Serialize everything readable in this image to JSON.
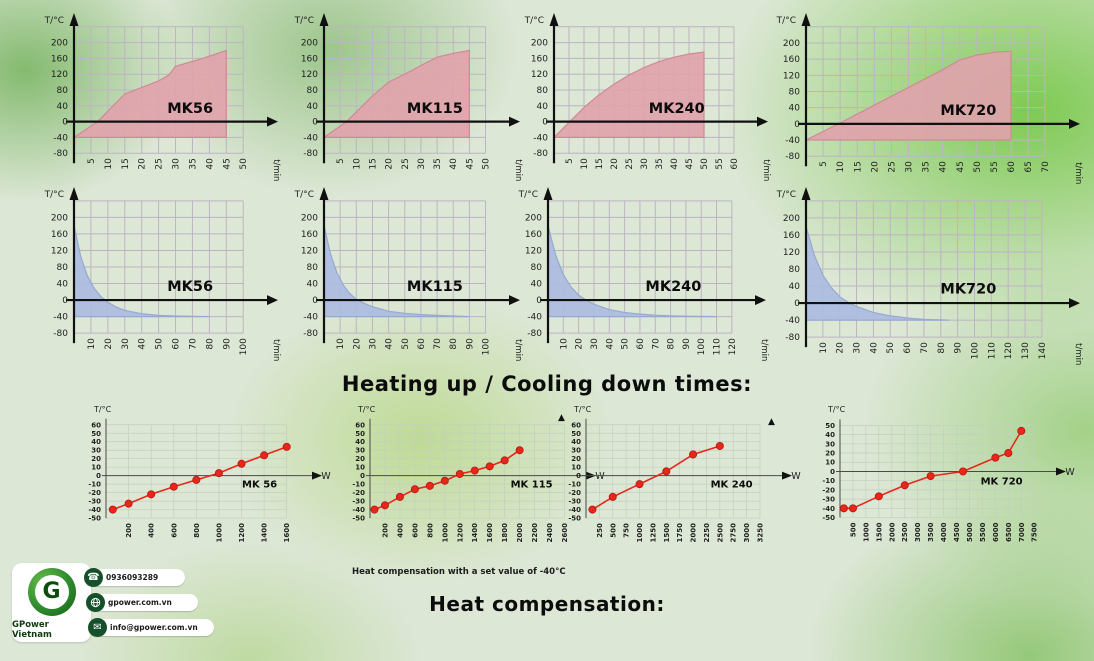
{
  "page": {
    "heading_mid": "Heating up / Cooling down times:",
    "heading_bottom": "Heat compensation:",
    "comp_caption": "Heat compensation with a set value of -40°C",
    "stray_arrow_glyph": "▲"
  },
  "colors": {
    "pink_fill": "#DFA3AB",
    "pink_stroke": "#CE8A95",
    "blue_fill": "#ABBCDF",
    "blue_stroke": "#96A9D3",
    "grid_area": "#BDB4C2",
    "grid_comp": "#C3CFBE",
    "red_line": "#E8271B",
    "red_marker": "#E8271B",
    "red_marker_edge": "#B5160E",
    "axis_bold": "#101010",
    "axis_thin": "#4a4a4a",
    "tick_text": "#222222"
  },
  "contact": {
    "brand": "GPower Vietnam",
    "logo_letter": "G",
    "items": [
      {
        "icon": "phone-icon",
        "label": "0936093289"
      },
      {
        "icon": "globe-icon",
        "label": "gpower.com.vn"
      },
      {
        "icon": "email-icon",
        "label": "info@gpower.com.vn"
      }
    ]
  },
  "chart_data": [
    {
      "id": "heat-mk56",
      "type": "area",
      "variant": "heating",
      "label": "MK56",
      "ylabel": "T/°C",
      "xlabel": "t/min",
      "yticks": [
        200,
        160,
        120,
        80,
        40,
        0,
        -40,
        -80
      ],
      "xticks": [
        5,
        10,
        15,
        20,
        25,
        30,
        35,
        40,
        45,
        50
      ],
      "xmax": 52,
      "baseline": -40,
      "points": [
        [
          0,
          -40
        ],
        [
          7,
          0
        ],
        [
          15,
          70
        ],
        [
          25,
          103
        ],
        [
          28,
          118
        ],
        [
          30,
          140
        ],
        [
          38,
          160
        ],
        [
          45,
          180
        ]
      ]
    },
    {
      "id": "heat-mk115",
      "type": "area",
      "variant": "heating",
      "label": "MK115",
      "ylabel": "T/°C",
      "xlabel": "t/min",
      "yticks": [
        200,
        160,
        120,
        80,
        40,
        0,
        -40,
        -80
      ],
      "xticks": [
        5,
        10,
        15,
        20,
        25,
        30,
        35,
        40,
        45,
        50
      ],
      "xmax": 52,
      "baseline": -40,
      "points": [
        [
          0,
          -40
        ],
        [
          7,
          0
        ],
        [
          15,
          65
        ],
        [
          20,
          100
        ],
        [
          25,
          120
        ],
        [
          30,
          142
        ],
        [
          35,
          163
        ],
        [
          40,
          173
        ],
        [
          45,
          180
        ]
      ]
    },
    {
      "id": "heat-mk240",
      "type": "area",
      "variant": "heating",
      "label": "MK240",
      "ylabel": "T/°C",
      "xlabel": "t/min",
      "yticks": [
        200,
        160,
        120,
        80,
        40,
        0,
        -40,
        -80
      ],
      "xticks": [
        5,
        10,
        15,
        20,
        25,
        30,
        35,
        40,
        45,
        50,
        55,
        60
      ],
      "xmax": 62,
      "baseline": -40,
      "points": [
        [
          0,
          -40
        ],
        [
          5,
          -2
        ],
        [
          10,
          36
        ],
        [
          15,
          68
        ],
        [
          20,
          95
        ],
        [
          25,
          118
        ],
        [
          30,
          137
        ],
        [
          35,
          152
        ],
        [
          40,
          163
        ],
        [
          45,
          171
        ],
        [
          50,
          176
        ]
      ]
    },
    {
      "id": "heat-mk720",
      "type": "area",
      "variant": "heating",
      "label": "MK720",
      "ylabel": "T/°C",
      "xlabel": "t/min",
      "yticks": [
        200,
        160,
        120,
        80,
        40,
        0,
        -40,
        -80
      ],
      "xticks": [
        5,
        10,
        15,
        20,
        25,
        30,
        35,
        40,
        45,
        50,
        55,
        60,
        65,
        70
      ],
      "xmax": 72,
      "baseline": -40,
      "points": [
        [
          0,
          -40
        ],
        [
          10,
          2
        ],
        [
          20,
          46
        ],
        [
          30,
          90
        ],
        [
          40,
          134
        ],
        [
          45,
          158
        ],
        [
          50,
          170
        ],
        [
          55,
          177
        ],
        [
          60,
          180
        ]
      ]
    },
    {
      "id": "cool-mk56",
      "type": "area",
      "variant": "cooling",
      "label": "MK56",
      "ylabel": "T/°C",
      "xlabel": "t/min",
      "yticks": [
        200,
        160,
        120,
        80,
        40,
        0,
        -40,
        -80
      ],
      "xticks": [
        10,
        20,
        30,
        40,
        50,
        60,
        70,
        80,
        90,
        100
      ],
      "xmax": 104,
      "baseline": -40,
      "points": [
        [
          0,
          180
        ],
        [
          4,
          105
        ],
        [
          8,
          58
        ],
        [
          12,
          28
        ],
        [
          16,
          8
        ],
        [
          20,
          -5
        ],
        [
          25,
          -17
        ],
        [
          30,
          -25
        ],
        [
          40,
          -33
        ],
        [
          50,
          -37
        ],
        [
          60,
          -38.5
        ],
        [
          70,
          -39.5
        ],
        [
          80,
          -40
        ]
      ]
    },
    {
      "id": "cool-mk115",
      "type": "area",
      "variant": "cooling",
      "label": "MK115",
      "ylabel": "T/°C",
      "xlabel": "t/min",
      "yticks": [
        200,
        160,
        120,
        80,
        40,
        0,
        -40,
        -80
      ],
      "xticks": [
        10,
        20,
        30,
        40,
        50,
        60,
        70,
        80,
        90,
        100
      ],
      "xmax": 104,
      "baseline": -40,
      "points": [
        [
          0,
          180
        ],
        [
          4,
          112
        ],
        [
          8,
          66
        ],
        [
          12,
          36
        ],
        [
          16,
          16
        ],
        [
          20,
          2
        ],
        [
          25,
          -8
        ],
        [
          30,
          -16
        ],
        [
          40,
          -27
        ],
        [
          50,
          -32
        ],
        [
          60,
          -35
        ],
        [
          70,
          -37
        ],
        [
          80,
          -38.5
        ],
        [
          90,
          -40
        ]
      ]
    },
    {
      "id": "cool-mk240",
      "type": "area",
      "variant": "cooling",
      "label": "MK240",
      "ylabel": "T/°C",
      "xlabel": "t/min",
      "yticks": [
        200,
        160,
        120,
        80,
        40,
        0,
        -40,
        -80
      ],
      "xticks": [
        10,
        20,
        30,
        40,
        50,
        60,
        70,
        80,
        90,
        100,
        110,
        120
      ],
      "xmax": 124,
      "baseline": -40,
      "points": [
        [
          0,
          180
        ],
        [
          5,
          108
        ],
        [
          10,
          62
        ],
        [
          15,
          32
        ],
        [
          20,
          12
        ],
        [
          25,
          0
        ],
        [
          30,
          -10
        ],
        [
          40,
          -23
        ],
        [
          50,
          -30
        ],
        [
          60,
          -34
        ],
        [
          70,
          -36.5
        ],
        [
          80,
          -38
        ],
        [
          90,
          -39
        ],
        [
          100,
          -39.5
        ],
        [
          110,
          -40
        ]
      ]
    },
    {
      "id": "cool-mk720",
      "type": "area",
      "variant": "cooling",
      "label": "MK720",
      "ylabel": "T/°C",
      "xlabel": "t/min",
      "yticks": [
        200,
        160,
        120,
        80,
        40,
        0,
        -40,
        -80
      ],
      "xticks": [
        10,
        20,
        30,
        40,
        50,
        60,
        70,
        80,
        90,
        100,
        110,
        120,
        130,
        140
      ],
      "xmax": 146,
      "baseline": -40,
      "points": [
        [
          0,
          180
        ],
        [
          5,
          112
        ],
        [
          10,
          66
        ],
        [
          15,
          36
        ],
        [
          20,
          15
        ],
        [
          25,
          2
        ],
        [
          30,
          -8
        ],
        [
          40,
          -22
        ],
        [
          50,
          -30
        ],
        [
          60,
          -35
        ],
        [
          70,
          -38
        ],
        [
          80,
          -39.5
        ],
        [
          85,
          -40
        ]
      ]
    },
    {
      "id": "comp-mk56",
      "type": "line",
      "variant": "comp",
      "label": "MK 56",
      "ylabel": "T/°C",
      "xlabel": "W",
      "yticks": [
        60,
        50,
        40,
        30,
        20,
        10,
        0,
        -10,
        -20,
        -30,
        -40,
        -50
      ],
      "xticks": [
        200,
        400,
        600,
        800,
        1000,
        1200,
        1400,
        1600
      ],
      "xmax": 1700,
      "points": [
        [
          60,
          -40
        ],
        [
          200,
          -33
        ],
        [
          400,
          -22
        ],
        [
          600,
          -13
        ],
        [
          800,
          -5
        ],
        [
          1000,
          3
        ],
        [
          1200,
          14
        ],
        [
          1400,
          24
        ],
        [
          1600,
          34
        ]
      ]
    },
    {
      "id": "comp-mk115",
      "type": "line",
      "variant": "comp",
      "label": "MK 115",
      "ylabel": "T/°C",
      "xlabel": "W",
      "yticks": [
        60,
        50,
        40,
        30,
        20,
        10,
        0,
        -10,
        -20,
        -30,
        -40,
        -50
      ],
      "xticks": [
        200,
        400,
        600,
        800,
        1000,
        1200,
        1400,
        1600,
        1800,
        2000,
        2200,
        2400,
        2600
      ],
      "xmax": 2700,
      "points": [
        [
          60,
          -40
        ],
        [
          200,
          -35
        ],
        [
          400,
          -25
        ],
        [
          600,
          -16
        ],
        [
          800,
          -12
        ],
        [
          1000,
          -6
        ],
        [
          1200,
          2
        ],
        [
          1400,
          6
        ],
        [
          1600,
          11
        ],
        [
          1800,
          18
        ],
        [
          2000,
          30
        ]
      ]
    },
    {
      "id": "comp-mk240",
      "type": "line",
      "variant": "comp",
      "label": "MK 240",
      "ylabel": "T/°C",
      "xlabel": "W",
      "yticks": [
        60,
        50,
        40,
        30,
        20,
        10,
        0,
        -10,
        -20,
        -30,
        -40,
        -50
      ],
      "xticks": [
        250,
        500,
        750,
        1000,
        1250,
        1500,
        1750,
        2000,
        2250,
        2500,
        2750,
        3000,
        3250
      ],
      "xmax": 3400,
      "points": [
        [
          120,
          -40
        ],
        [
          500,
          -25
        ],
        [
          1000,
          -10
        ],
        [
          1500,
          5
        ],
        [
          2000,
          25
        ],
        [
          2500,
          35
        ]
      ]
    },
    {
      "id": "comp-mk720",
      "type": "line",
      "variant": "comp",
      "label": "MK 720",
      "ylabel": "T/°C",
      "xlabel": "W",
      "yticks": [
        50,
        40,
        30,
        20,
        10,
        0,
        -10,
        -20,
        -30,
        -40,
        -50
      ],
      "xticks": [
        500,
        1000,
        1500,
        2000,
        2500,
        3000,
        3500,
        4000,
        4500,
        5000,
        5500,
        6000,
        6500,
        7000,
        7500
      ],
      "xmax": 7800,
      "points": [
        [
          150,
          -40
        ],
        [
          500,
          -40
        ],
        [
          1500,
          -27
        ],
        [
          2500,
          -15
        ],
        [
          3500,
          -5
        ],
        [
          4750,
          0
        ],
        [
          6000,
          15
        ],
        [
          6500,
          20
        ],
        [
          7000,
          44
        ]
      ]
    }
  ]
}
